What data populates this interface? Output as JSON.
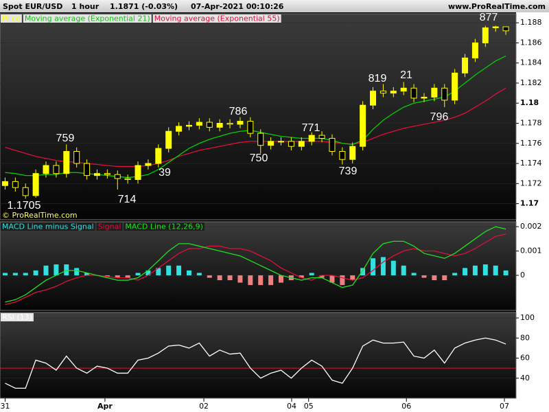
{
  "header": {
    "symbol": "Spot EUR/USD",
    "interval": "1 hour",
    "price": "1.1871 (-0.03%)",
    "timestamp": "07-Apr-2021 00:10:26",
    "site": "www.ProRealTime.com"
  },
  "chart_data": [
    {
      "type": "candlestick",
      "watermark": "© ProRealTime.com",
      "xlim": [
        -0.5,
        50
      ],
      "xticks": [
        {
          "value": 0,
          "label": "31"
        },
        {
          "value": 9.77,
          "label": "Apr"
        },
        {
          "value": 19.45,
          "label": "02"
        },
        {
          "value": 28.04,
          "label": "04"
        },
        {
          "value": 29.7,
          "label": "05"
        },
        {
          "value": 39.27,
          "label": "06"
        },
        {
          "value": 48.86,
          "label": "07"
        }
      ],
      "ylim": [
        1.1684,
        1.1889
      ],
      "yticks": [
        1.17,
        1.172,
        1.174,
        1.176,
        1.178,
        1.18,
        1.182,
        1.184,
        1.186,
        1.188
      ],
      "annotations": [
        "1.1705",
        "759",
        "714",
        "39",
        "786",
        "750",
        "771",
        "739",
        "819",
        "21",
        "796",
        "877"
      ],
      "series": [
        {
          "name": "Price",
          "color": "#ffff00",
          "open": [
            1.1718,
            1.1722,
            1.1716,
            1.1708,
            1.173,
            1.1738,
            1.173,
            1.1752,
            1.174,
            1.1728,
            1.173,
            1.1729,
            1.1725,
            1.1724,
            1.1738,
            1.174,
            1.1755,
            1.1772,
            1.1777,
            1.1778,
            1.1781,
            1.1776,
            1.178,
            1.1779,
            1.1782,
            1.177,
            1.1758,
            1.1762,
            1.1762,
            1.1757,
            1.1762,
            1.1768,
            1.1765,
            1.1752,
            1.1744,
            1.1757,
            1.1798,
            1.1812,
            1.181,
            1.1812,
            1.1815,
            1.1805,
            1.1806,
            1.1815,
            1.1803,
            1.183,
            1.1845,
            1.186,
            1.1875,
            1.1876
          ],
          "high": [
            1.1726,
            1.1726,
            1.172,
            1.1734,
            1.1742,
            1.1742,
            1.1759,
            1.1756,
            1.1744,
            1.1734,
            1.1734,
            1.1733,
            1.1729,
            1.1742,
            1.1744,
            1.1759,
            1.1776,
            1.1781,
            1.1782,
            1.1785,
            1.1785,
            1.1784,
            1.1784,
            1.1786,
            1.1786,
            1.1774,
            1.1766,
            1.1766,
            1.1766,
            1.1766,
            1.1771,
            1.1772,
            1.1769,
            1.1756,
            1.1761,
            1.1802,
            1.1816,
            1.1819,
            1.1816,
            1.1821,
            1.1819,
            1.181,
            1.1819,
            1.1819,
            1.1834,
            1.1849,
            1.1864,
            1.1877,
            1.1877,
            1.1876
          ],
          "low": [
            1.1714,
            1.1712,
            1.1705,
            1.1706,
            1.1726,
            1.1726,
            1.1726,
            1.1736,
            1.1724,
            1.1724,
            1.1725,
            1.1714,
            1.172,
            1.172,
            1.1734,
            1.1736,
            1.1751,
            1.1768,
            1.1773,
            1.1774,
            1.1772,
            1.1772,
            1.1775,
            1.1775,
            1.1766,
            1.175,
            1.1754,
            1.1758,
            1.1753,
            1.1753,
            1.1758,
            1.1761,
            1.1748,
            1.1739,
            1.174,
            1.1753,
            1.1794,
            1.1806,
            1.1806,
            1.1808,
            1.1801,
            1.1801,
            1.1802,
            1.1796,
            1.1799,
            1.1826,
            1.1841,
            1.1856,
            1.1871,
            1.1868
          ],
          "close": [
            1.1722,
            1.1716,
            1.1708,
            1.173,
            1.1738,
            1.173,
            1.1752,
            1.174,
            1.1728,
            1.173,
            1.1729,
            1.1725,
            1.1724,
            1.1738,
            1.174,
            1.1755,
            1.1772,
            1.1777,
            1.1778,
            1.1781,
            1.1776,
            1.178,
            1.1779,
            1.1782,
            1.177,
            1.1758,
            1.1762,
            1.1762,
            1.1757,
            1.1762,
            1.1768,
            1.1765,
            1.1752,
            1.1744,
            1.1757,
            1.1798,
            1.1812,
            1.181,
            1.1812,
            1.1815,
            1.1805,
            1.1806,
            1.1815,
            1.1803,
            1.183,
            1.1845,
            1.186,
            1.1875,
            1.1876,
            1.1872
          ]
        },
        {
          "name": "Moving average (Exponential 21)",
          "color": "#00d000",
          "values": [
            1.1731,
            1.173,
            1.1728,
            1.1728,
            1.1729,
            1.1729,
            1.1731,
            1.1731,
            1.173,
            1.1729,
            1.1728,
            1.1727,
            1.1726,
            1.1727,
            1.1729,
            1.1734,
            1.1741,
            1.1748,
            1.1755,
            1.176,
            1.1764,
            1.1767,
            1.177,
            1.1772,
            1.1773,
            1.1771,
            1.1769,
            1.1767,
            1.1766,
            1.1765,
            1.1765,
            1.1765,
            1.1763,
            1.176,
            1.1759,
            1.1763,
            1.1774,
            1.1783,
            1.179,
            1.1796,
            1.18,
            1.1802,
            1.1804,
            1.1806,
            1.1812,
            1.182,
            1.1828,
            1.1835,
            1.1842,
            1.1847
          ]
        },
        {
          "name": "Moving average (Exponential 55)",
          "color": "#e0103a",
          "values": [
            1.1756,
            1.1753,
            1.175,
            1.1747,
            1.1745,
            1.1743,
            1.1742,
            1.1741,
            1.174,
            1.1739,
            1.1738,
            1.1737,
            1.1737,
            1.1737,
            1.1738,
            1.174,
            1.1743,
            1.1747,
            1.175,
            1.1753,
            1.1755,
            1.1757,
            1.1759,
            1.1761,
            1.1762,
            1.1762,
            1.1762,
            1.1762,
            1.1762,
            1.1762,
            1.1762,
            1.1762,
            1.1761,
            1.176,
            1.1759,
            1.1761,
            1.1765,
            1.1769,
            1.1772,
            1.1775,
            1.1777,
            1.1779,
            1.1781,
            1.1783,
            1.1786,
            1.179,
            1.1796,
            1.1802,
            1.1809,
            1.1815
          ]
        }
      ]
    },
    {
      "type": "macd",
      "ylim": [
        -0.00144,
        0.0022
      ],
      "yticks": [
        0,
        0.001,
        0.002
      ],
      "series": [
        {
          "name": "MACD Line minus Signal",
          "color": "#33e0e0",
          "negative_color": "#f08080",
          "values": [
            0.0001,
            0.0001,
            0.0001,
            0.0002,
            0.0004,
            0.00045,
            0.00045,
            0.0003,
            0.0001,
            0,
            -5e-05,
            -0.0001,
            -0.0001,
            0.0001,
            0.0002,
            0.0003,
            0.0004,
            0.0004,
            0.0002,
            0.0001,
            -0.0001,
            -0.0002,
            -0.0002,
            -0.0003,
            -0.0004,
            -0.0004,
            -0.0004,
            -0.0003,
            -0.0002,
            -0.0001,
            0.0001,
            -0.0001,
            -0.0003,
            -0.0004,
            -0.0002,
            0.0003,
            0.0007,
            0.00075,
            0.0006,
            0.0004,
            0.0001,
            -0.0001,
            -0.0002,
            -0.0002,
            0.0001,
            0.0003,
            0.0004,
            0.00045,
            0.0004,
            0.0002
          ]
        },
        {
          "name": "Signal",
          "color": "#e0103a",
          "values": [
            -0.0012,
            -0.0011,
            -0.0009,
            -0.0007,
            -0.0006,
            -0.00045,
            -0.00025,
            -0.0001,
            0,
            0,
            -5e-05,
            -0.0001,
            -0.0001,
            -0.0002,
            0,
            0.0003,
            0.0006,
            0.0009,
            0.0011,
            0.0011,
            0.0012,
            0.0012,
            0.0011,
            0.0011,
            0.001,
            0.0008,
            0.0006,
            0.0003,
            0.0001,
            -0.0001,
            -0.0002,
            0,
            0,
            -0.0001,
            -0.0002,
            -0.0001,
            0.0002,
            0.00055,
            0.0008,
            0.001,
            0.0011,
            0.001,
            0.001,
            0.0009,
            0.0008,
            0.0009,
            0.0011,
            0.00135,
            0.0016,
            0.0017
          ]
        },
        {
          "name": "MACD Line (12,26,9)",
          "color": "#20e020",
          "values": [
            -0.0011,
            -0.001,
            -0.0008,
            -0.0005,
            -0.0002,
            0,
            0.0002,
            0.0002,
            0.0001,
            0,
            -0.0001,
            -0.0002,
            -0.0002,
            -0.0001,
            0.0002,
            0.0006,
            0.001,
            0.0013,
            0.0013,
            0.0012,
            0.0011,
            0.001,
            0.0009,
            0.0008,
            0.0006,
            0.0004,
            0.0002,
            0,
            -0.0001,
            -0.0002,
            -0.0001,
            -0.0001,
            -0.0003,
            -0.0005,
            -0.0004,
            0.0002,
            0.0009,
            0.0013,
            0.0014,
            0.0014,
            0.0012,
            0.0009,
            0.0008,
            0.0007,
            0.0009,
            0.0012,
            0.0015,
            0.0018,
            0.002,
            0.0019
          ]
        }
      ]
    },
    {
      "type": "line",
      "ylim": [
        20,
        105.5
      ],
      "yticks": [
        40,
        60,
        80,
        100
      ],
      "level": 50,
      "level_color": "#e0103a",
      "series": [
        {
          "name": "RSI (13)",
          "color": "#ffffff",
          "values": [
            35,
            30,
            30,
            58,
            55,
            48,
            62,
            50,
            45,
            52,
            50,
            45,
            45,
            58,
            60,
            65,
            72,
            73,
            70,
            75,
            62,
            68,
            64,
            65,
            50,
            40,
            45,
            48,
            40,
            50,
            58,
            52,
            38,
            35,
            50,
            72,
            78,
            75,
            75,
            76,
            62,
            60,
            68,
            55,
            70,
            75,
            78,
            80,
            78,
            74
          ]
        }
      ]
    }
  ]
}
